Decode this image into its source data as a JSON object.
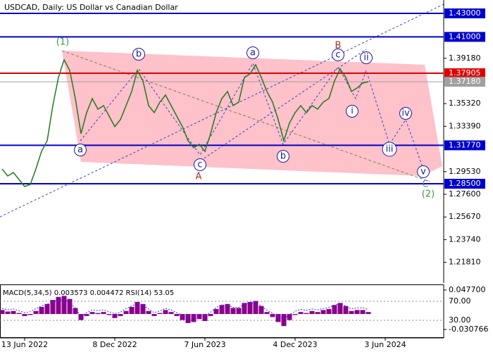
{
  "chart_data": [
    {
      "type": "line",
      "title": "USDCAD, Daily:  US Dollar vs Canadian Dollar",
      "categories": [
        null,
        null,
        null,
        null,
        "13 Jun 2022",
        null,
        null,
        null,
        null,
        null,
        null,
        null,
        null,
        null,
        null,
        null,
        null,
        null,
        null,
        null,
        "8 Dec 2022",
        null,
        null,
        null,
        null,
        null,
        null,
        null,
        null,
        null,
        null,
        null,
        null,
        null,
        null,
        null,
        "7 Jun 2023",
        null,
        null,
        null,
        null,
        null,
        null,
        null,
        null,
        null,
        null,
        null,
        null,
        null,
        null,
        null,
        "4 Dec 2023",
        null,
        null,
        null,
        null,
        null,
        null,
        null,
        null,
        null,
        null,
        null,
        null,
        null,
        null,
        null,
        "3 Jun 2024",
        null,
        null,
        null,
        null,
        null,
        null,
        null,
        null,
        null,
        null
      ],
      "color": "#1f7a1f",
      "values": [
        1.2976,
        1.2916,
        1.2946,
        1.2886,
        1.2826,
        1.2844,
        1.2976,
        1.3126,
        1.3216,
        1.3515,
        1.3755,
        1.3905,
        1.3815,
        1.3575,
        1.3276,
        1.3455,
        1.3575,
        1.3485,
        1.3515,
        1.3425,
        1.3336,
        1.3396,
        1.3515,
        1.3635,
        1.3815,
        1.3725,
        1.3515,
        1.3455,
        1.3545,
        1.3605,
        1.3515,
        1.3425,
        1.3336,
        1.3216,
        1.3156,
        1.3186,
        1.3126,
        1.3276,
        1.3455,
        1.3575,
        1.3635,
        1.3515,
        1.3545,
        1.3755,
        1.3785,
        1.3863,
        1.3755,
        1.3635,
        1.3545,
        1.3396,
        1.3216,
        1.3366,
        1.3455,
        1.3515,
        1.3455,
        1.3515,
        1.3485,
        1.3545,
        1.3575,
        1.3725,
        1.3827,
        1.3755,
        1.3635,
        1.3665,
        1.3707,
        1.3718,
        null,
        null,
        null,
        null,
        null,
        null,
        null,
        null,
        null,
        null,
        null,
        null,
        null
      ],
      "ylim": [
        1.2005,
        1.4414
      ],
      "yticks": [
        {
          "value": 1.3918,
          "label": "1.39180"
        },
        {
          "value": 1.3532,
          "label": "1.35320"
        },
        {
          "value": 1.3339,
          "label": "1.33390"
        },
        {
          "value": 1.2953,
          "label": "1.29530"
        },
        {
          "value": 1.276,
          "label": "1.27600"
        },
        {
          "value": 1.2567,
          "label": "1.25670"
        },
        {
          "value": 1.2374,
          "label": "1.23740"
        },
        {
          "value": 1.2181,
          "label": "1.21810"
        }
      ],
      "levels": [
        {
          "value": 1.43,
          "label": "1.43000",
          "color": "#0000cd"
        },
        {
          "value": 1.41,
          "label": "1.41000",
          "color": "#0000cd"
        },
        {
          "value": 1.37905,
          "label": "1.37905",
          "color": "#e00000"
        },
        {
          "value": 1.3718,
          "label": "1.37180",
          "color": "#a0a0a0"
        },
        {
          "value": 1.3177,
          "label": "1.31770",
          "color": "#0000cd"
        },
        {
          "value": 1.285,
          "label": "1.28500",
          "color": "#0000cd"
        }
      ],
      "annotations": [
        {
          "text": "(1)",
          "color": "#3a9a3a",
          "circled": false
        },
        {
          "text": "a",
          "color": "#1a1aa0",
          "circled": true
        },
        {
          "text": "b",
          "color": "#1a1aa0",
          "circled": true
        },
        {
          "text": "c",
          "color": "#1a1aa0",
          "circled": true
        },
        {
          "text": "A",
          "color": "#b03020",
          "circled": false
        },
        {
          "text": "a",
          "color": "#1a1aa0",
          "circled": true
        },
        {
          "text": "b",
          "color": "#1a1aa0",
          "circled": true
        },
        {
          "text": "B",
          "color": "#b03020",
          "circled": false
        },
        {
          "text": "c",
          "color": "#1a1aa0",
          "circled": true
        },
        {
          "text": "ii",
          "color": "#1a1aa0",
          "circled": true
        },
        {
          "text": "i",
          "color": "#1a1aa0",
          "circled": true
        },
        {
          "text": "iii",
          "color": "#1a1aa0",
          "circled": true
        },
        {
          "text": "iv",
          "color": "#1a1aa0",
          "circled": true
        },
        {
          "text": "v",
          "color": "#1a1aa0",
          "circled": true
        },
        {
          "text": "C",
          "color": "#7080a0",
          "circled": false
        },
        {
          "text": "(2)",
          "color": "#3a9a3a",
          "circled": false
        }
      ]
    },
    {
      "type": "macd",
      "title": "MACD(5,34,5) 0.003573 0.004472 RSI(14) 53.05",
      "ylim": [
        -0.030766,
        0.0477
      ],
      "yticks": [
        {
          "value": 0.0477,
          "label": "0.047700"
        },
        {
          "value": -0.030766,
          "label": "-0.030766"
        }
      ],
      "y2lim": [
        10.7,
        93.7
      ],
      "y2ticks": [
        {
          "value": 70,
          "label": "70.00"
        },
        {
          "value": 30,
          "label": "30.00"
        }
      ],
      "series": [
        {
          "color": "#8b008b",
          "values": [
            0.008,
            0.005,
            0.006,
            0.002,
            -0.004,
            -0.002,
            0.006,
            0.014,
            0.02,
            0.028,
            0.034,
            0.036,
            0.03,
            0.012,
            -0.012,
            -0.004,
            0.004,
            0.002,
            0.004,
            -0.002,
            -0.008,
            -0.004,
            0.006,
            0.014,
            0.024,
            0.02,
            0.006,
            -0.004,
            0.002,
            0.008,
            0.004,
            -0.004,
            -0.012,
            -0.018,
            -0.016,
            -0.01,
            -0.014,
            -0.004,
            0.01,
            0.018,
            0.02,
            0.012,
            0.012,
            0.022,
            0.024,
            0.026,
            0.016,
            0.004,
            -0.006,
            -0.016,
            -0.024,
            -0.012,
            -0.002,
            0.004,
            0.002,
            0.006,
            0.004,
            0.008,
            0.01,
            0.018,
            0.022,
            0.016,
            0.006,
            0.008,
            0.008,
            0.004,
            null,
            null,
            null,
            null,
            null,
            null,
            null,
            null,
            null,
            null,
            null,
            null,
            null
          ]
        },
        {
          "color": "#1e3cff",
          "axis": "y2",
          "values": [
            55,
            52,
            54,
            50,
            46,
            48,
            55,
            60,
            64,
            68,
            72,
            74,
            68,
            56,
            38,
            46,
            52,
            50,
            52,
            48,
            44,
            47,
            55,
            60,
            66,
            62,
            54,
            46,
            50,
            55,
            52,
            46,
            40,
            36,
            38,
            42,
            40,
            47,
            57,
            62,
            63,
            57,
            57,
            64,
            66,
            67,
            60,
            51,
            45,
            38,
            33,
            42,
            49,
            53,
            51,
            54,
            52,
            55,
            57,
            62,
            65,
            60,
            54,
            56,
            56,
            53,
            null,
            null,
            null,
            null,
            null,
            null,
            null,
            null,
            null,
            null,
            null,
            null,
            null
          ]
        }
      ]
    }
  ]
}
